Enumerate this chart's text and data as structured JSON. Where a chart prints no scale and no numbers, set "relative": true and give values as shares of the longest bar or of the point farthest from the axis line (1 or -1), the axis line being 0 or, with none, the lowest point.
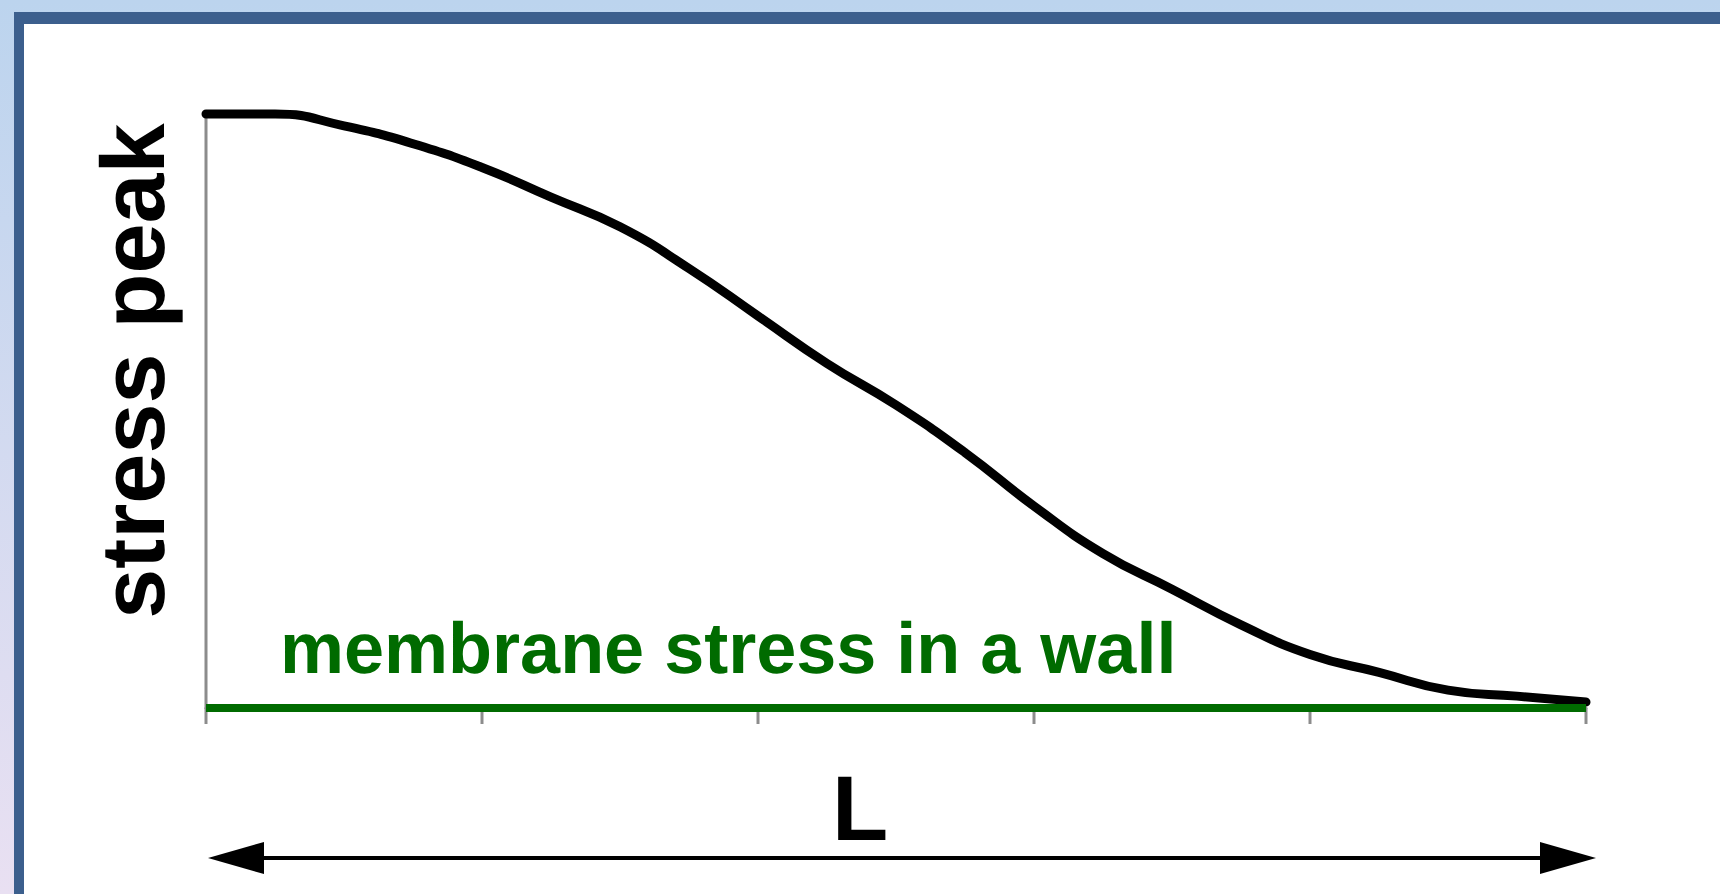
{
  "chart_data": {
    "type": "line",
    "relative": true,
    "ylabel": "stress peak",
    "xlabel": "L",
    "marker": "none",
    "categories": [
      null,
      null,
      null,
      null,
      null,
      null,
      null,
      null,
      null,
      null,
      null,
      null,
      null,
      null,
      null,
      null,
      null,
      null,
      null,
      null,
      null
    ],
    "series": [
      {
        "color": "#000000",
        "values": [
          1,
          1,
          0.98,
          0.95,
          0.91,
          0.86,
          0.81,
          0.74,
          0.66,
          0.58,
          0.51,
          0.43,
          0.34,
          0.26,
          0.2,
          0.14,
          0.09,
          0.06,
          0.03,
          0.02,
          0.01
        ]
      }
    ],
    "ref_lines": [
      {
        "axis": "y",
        "value": 0,
        "label": "membrane stress in a wall",
        "color": "#006b00"
      }
    ]
  }
}
